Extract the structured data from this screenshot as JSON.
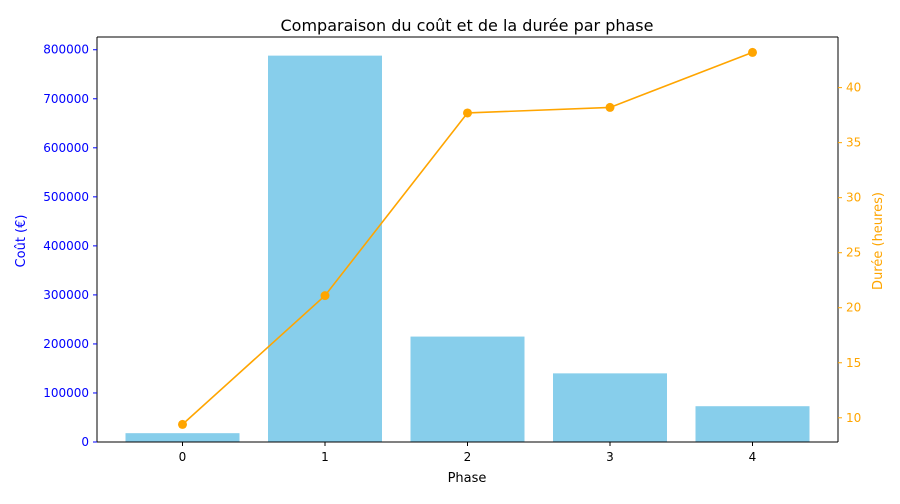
{
  "chart_data": {
    "type": "bar",
    "title": "Comparaison du coût et de la durée par phase",
    "xlabel": "Phase",
    "ylabel": "Coût (€)",
    "y2label": "Durée (heures)",
    "categories": [
      "0",
      "1",
      "2",
      "3",
      "4"
    ],
    "ylim": [
      0,
      826000
    ],
    "y2lim": [
      7.8,
      44.6
    ],
    "yticks": [
      0,
      100000,
      200000,
      300000,
      400000,
      500000,
      600000,
      700000,
      800000
    ],
    "y2ticks": [
      10,
      15,
      20,
      25,
      30,
      35,
      40
    ],
    "grid": false,
    "series": [
      {
        "name": "",
        "type": "bar",
        "axis": "left",
        "color": "#87CEEB",
        "values": [
          18000,
          788000,
          215000,
          140000,
          73000
        ]
      },
      {
        "name": "",
        "type": "line",
        "axis": "right",
        "color": "#FFA500",
        "values": [
          9.4,
          21.1,
          37.7,
          38.2,
          43.2
        ]
      }
    ],
    "colors": {
      "left_axis": "#0000FF",
      "right_axis": "#FFA500",
      "text": "#000000"
    }
  }
}
